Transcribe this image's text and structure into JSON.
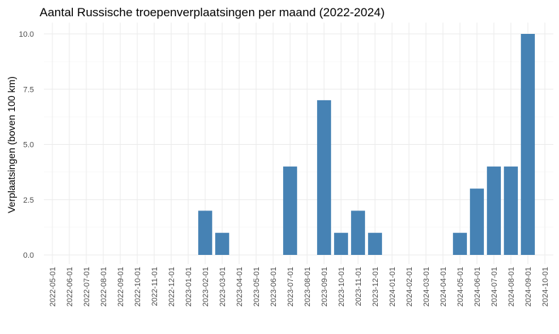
{
  "chart_data": {
    "type": "bar",
    "title": "Aantal Russische troepenverplaatsingen per maand (2022-2024)",
    "xlabel": "",
    "ylabel": "Verplaatsingen (boven 100 km)",
    "ylim": [
      0,
      10.5
    ],
    "yticks": [
      0,
      2.5,
      5,
      7.5,
      10
    ],
    "ytick_labels": [
      "0.0",
      "2.5",
      "5.0",
      "7.5",
      "10.0"
    ],
    "grid": true,
    "bar_color": "#4682B4",
    "categories": [
      "2022-05-01",
      "2022-06-01",
      "2022-07-01",
      "2022-08-01",
      "2022-09-01",
      "2022-10-01",
      "2022-11-01",
      "2022-12-01",
      "2023-01-01",
      "2023-02-01",
      "2023-03-01",
      "2023-04-01",
      "2023-05-01",
      "2023-06-01",
      "2023-07-01",
      "2023-08-01",
      "2023-09-01",
      "2023-10-01",
      "2023-11-01",
      "2023-12-01",
      "2024-01-01",
      "2024-02-01",
      "2024-03-01",
      "2024-04-01",
      "2024-05-01",
      "2024-06-01",
      "2024-07-01",
      "2024-08-01",
      "2024-09-01",
      "2024-10-01"
    ],
    "values": [
      0,
      0,
      0,
      0,
      0,
      0,
      0,
      0,
      0,
      2,
      1,
      0,
      0,
      0,
      4,
      0,
      7,
      1,
      2,
      1,
      0,
      0,
      0,
      0,
      1,
      3,
      4,
      4,
      10,
      0
    ]
  }
}
